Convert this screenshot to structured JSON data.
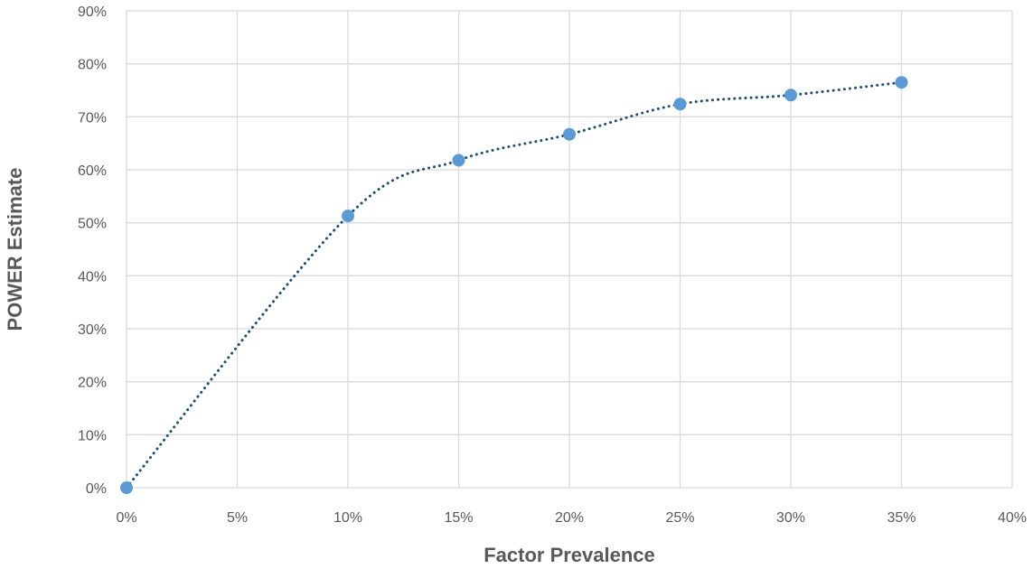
{
  "chart_data": {
    "type": "scatter",
    "title": "",
    "xlabel": "Factor Prevalence",
    "ylabel": "POWER Estimate",
    "xlim": [
      0,
      40
    ],
    "ylim": [
      0,
      90
    ],
    "x_ticks": [
      "0%",
      "5%",
      "10%",
      "15%",
      "20%",
      "25%",
      "30%",
      "35%",
      "40%"
    ],
    "y_ticks": [
      "0%",
      "10%",
      "20%",
      "30%",
      "40%",
      "50%",
      "60%",
      "70%",
      "80%",
      "90%"
    ],
    "grid": true,
    "legend": "none",
    "series": [
      {
        "x": [
          0,
          10,
          15,
          20,
          25,
          30,
          35
        ],
        "y": [
          0,
          51.3,
          61.8,
          66.7,
          72.4,
          74.1,
          76.5
        ],
        "color": "#5b9bd5",
        "trendline": {
          "style": "dotted",
          "color": "#1f4e79",
          "kind": "smooth"
        }
      }
    ]
  }
}
